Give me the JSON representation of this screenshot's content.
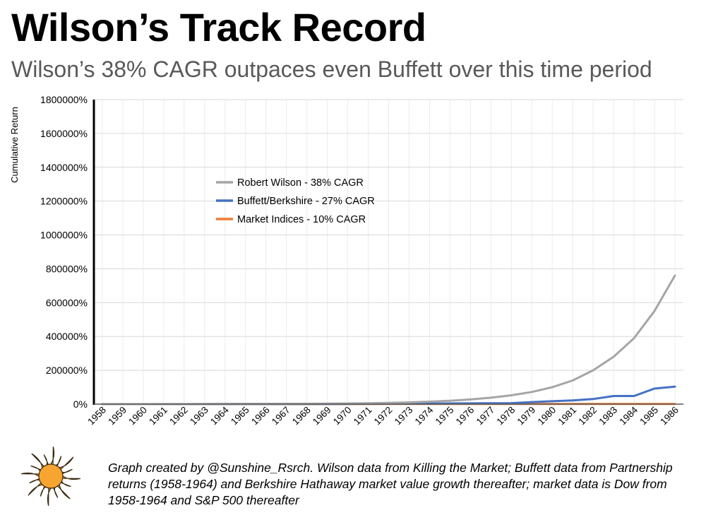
{
  "title": "Wilson’s Track Record",
  "subtitle": "Wilson’s 38% CAGR outpaces even Buffett over this time period",
  "caption": "Graph created by @Sunshine_Rsrch. Wilson data from Killing the Market; Buffett data from Partnership returns (1958-1964) and Berkshire Hathaway market value growth thereafter; market data is Dow from 1958-1964 and S&P 500 thereafter",
  "logo": {
    "name": "sun-logo",
    "color": "#F7A530"
  },
  "chart_data": {
    "type": "line",
    "title": "",
    "xlabel": "",
    "ylabel": "Cumulative Return",
    "ylim": [
      0,
      1800000
    ],
    "yticks": [
      "0%",
      "200000%",
      "400000%",
      "600000%",
      "800000%",
      "1000000%",
      "1200000%",
      "1400000%",
      "1600000%",
      "1800000%"
    ],
    "ytick_values": [
      0,
      200000,
      400000,
      600000,
      800000,
      1000000,
      1200000,
      1400000,
      1600000,
      1800000
    ],
    "grid": true,
    "legend": "upper-left",
    "categories": [
      "1958",
      "1959",
      "1960",
      "1961",
      "1962",
      "1963",
      "1964",
      "1965",
      "1966",
      "1967",
      "1968",
      "1969",
      "1970",
      "1971",
      "1972",
      "1973",
      "1974",
      "1975",
      "1976",
      "1977",
      "1978",
      "1979",
      "1980",
      "1981",
      "1982",
      "1983",
      "1984",
      "1985",
      "1986"
    ],
    "series": [
      {
        "name": "Robert Wilson - 38% CAGR",
        "color": "#A5A5A5",
        "values": [
          100,
          150,
          200,
          300,
          400,
          500,
          700,
          900,
          1200,
          1600,
          2200,
          3000,
          4000,
          5500,
          7500,
          10500,
          14500,
          20000,
          27500,
          38000,
          52000,
          72000,
          100000,
          140000,
          200000,
          280000,
          390000,
          550000,
          760000
        ]
      },
      {
        "name": "Buffett/Berkshire - 27% CAGR",
        "color": "#4472C4",
        "values": [
          0,
          0,
          100,
          150,
          200,
          300,
          400,
          500,
          600,
          800,
          1000,
          1300,
          1600,
          2000,
          2500,
          3000,
          3500,
          4000,
          4600,
          5200,
          6000,
          12000,
          17000,
          22000,
          30000,
          48000,
          48000,
          92000,
          103000
        ]
      },
      {
        "name": "Market Indices - 10% CAGR",
        "color": "#ED7D31",
        "values": [
          0,
          40,
          80,
          120,
          160,
          200,
          250,
          300,
          350,
          400,
          450,
          500,
          550,
          600,
          650,
          700,
          750,
          800,
          850,
          900,
          950,
          1000,
          1050,
          1100,
          1150,
          1200,
          1250,
          1300,
          1350
        ]
      }
    ]
  }
}
